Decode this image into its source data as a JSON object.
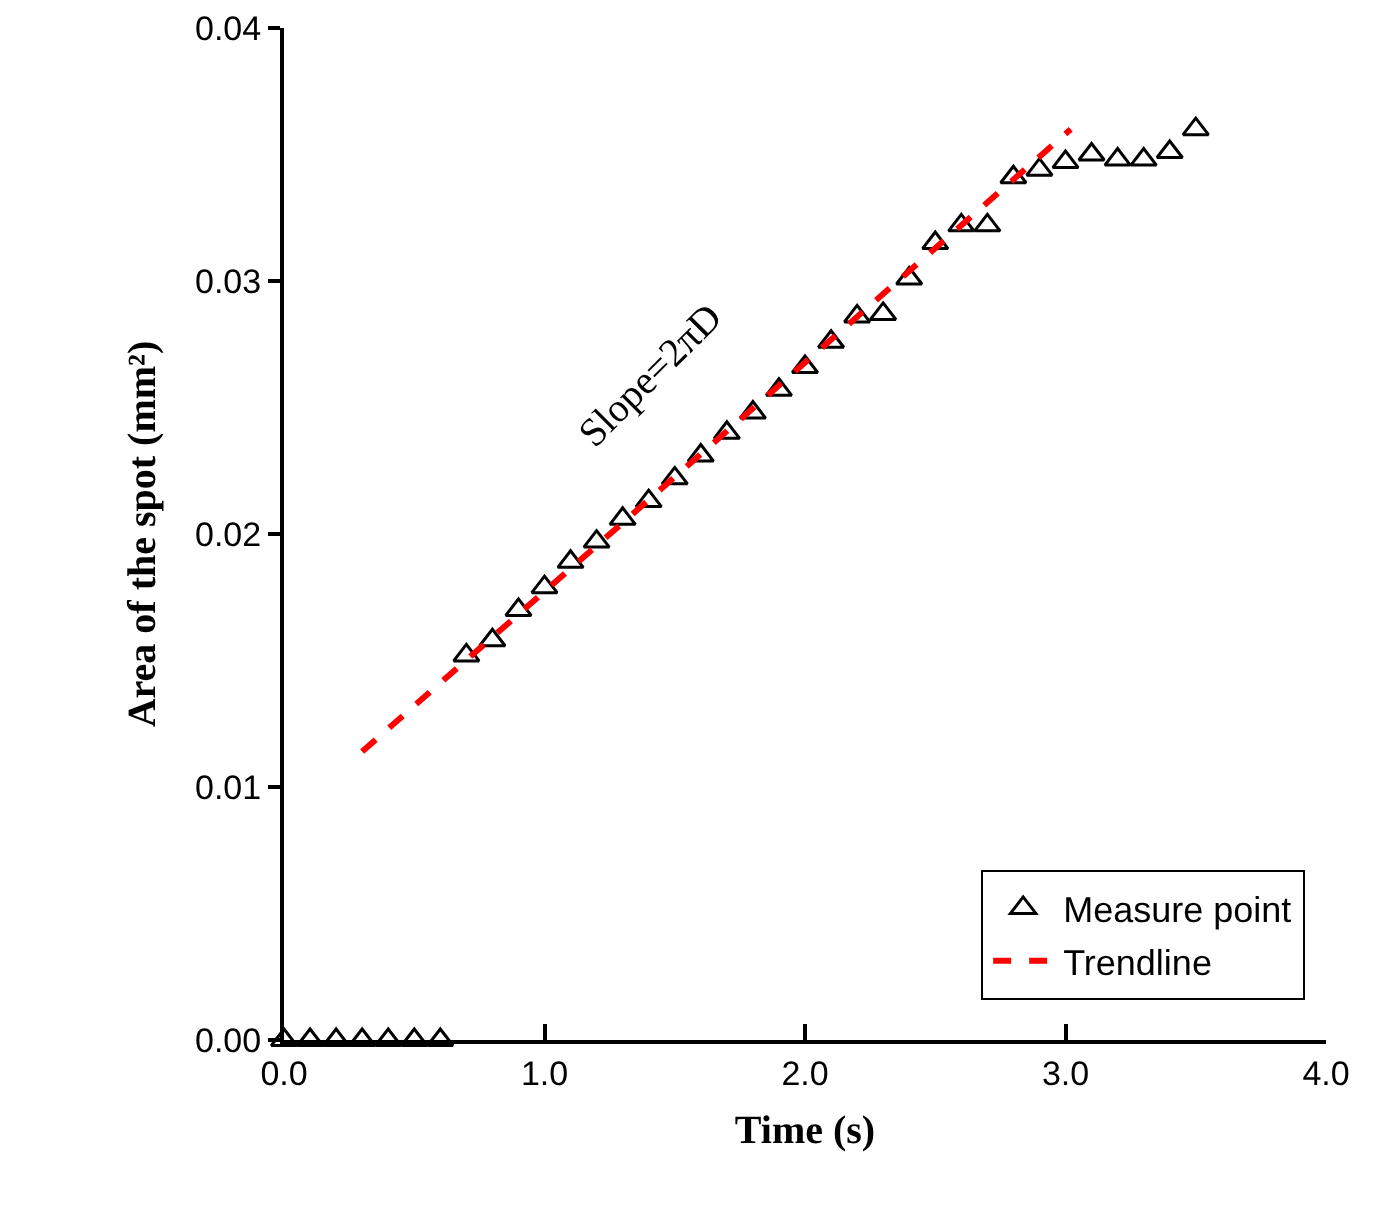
{
  "chart_data": {
    "type": "scatter",
    "xlabel": "Time (s)",
    "ylabel": "Area of the spot (mm²)",
    "xlim": [
      0,
      4
    ],
    "xticks": [
      {
        "value": 0,
        "label": "0.0"
      },
      {
        "value": 1,
        "label": "1.0"
      },
      {
        "value": 2,
        "label": "2.0"
      },
      {
        "value": 3,
        "label": "3.0"
      },
      {
        "value": 4,
        "label": "4.0"
      }
    ],
    "ylim": [
      0,
      0.04
    ],
    "yticks": [
      {
        "value": 0,
        "label": "0.00"
      },
      {
        "value": 0.01,
        "label": "0.01"
      },
      {
        "value": 0.02,
        "label": "0.02"
      },
      {
        "value": 0.03,
        "label": "0.03"
      },
      {
        "value": 0.04,
        "label": "0.04"
      }
    ],
    "grid": false,
    "legend": "bottom right",
    "annotations": [
      "Slope=2πD"
    ],
    "series": [
      {
        "name": "Measure point",
        "marker": "triangle",
        "color": "#000000",
        "x": [
          0,
          0.1,
          0.2,
          0.3,
          0.4,
          0.5,
          0.6,
          0.7,
          0.8,
          0.9,
          1.0,
          1.1,
          1.2,
          1.3,
          1.4,
          1.5,
          1.6,
          1.7,
          1.8,
          1.9,
          2.0,
          2.1,
          2.2,
          2.3,
          2.4,
          2.5,
          2.6,
          2.7,
          2.8,
          2.9,
          3.0,
          3.1,
          3.2,
          3.3,
          3.4,
          3.5
        ],
        "values": [
          0,
          0,
          0,
          0,
          0,
          0,
          0,
          0.0152,
          0.0158,
          0.017,
          0.0179,
          0.0189,
          0.0197,
          0.0206,
          0.0213,
          0.0222,
          0.0231,
          0.024,
          0.0248,
          0.0257,
          0.0266,
          0.0276,
          0.0286,
          0.0287,
          0.0301,
          0.0315,
          0.0322,
          0.0322,
          0.0341,
          0.0344,
          0.0347,
          0.035,
          0.0348,
          0.0348,
          0.0351,
          0.036
        ]
      },
      {
        "name": "Trendline",
        "type": "line",
        "line_style": "dashed",
        "marker": "none",
        "color": "#ff0000",
        "x": [
          0.3,
          3.02
        ],
        "values": [
          0.0114,
          0.036
        ]
      }
    ]
  }
}
